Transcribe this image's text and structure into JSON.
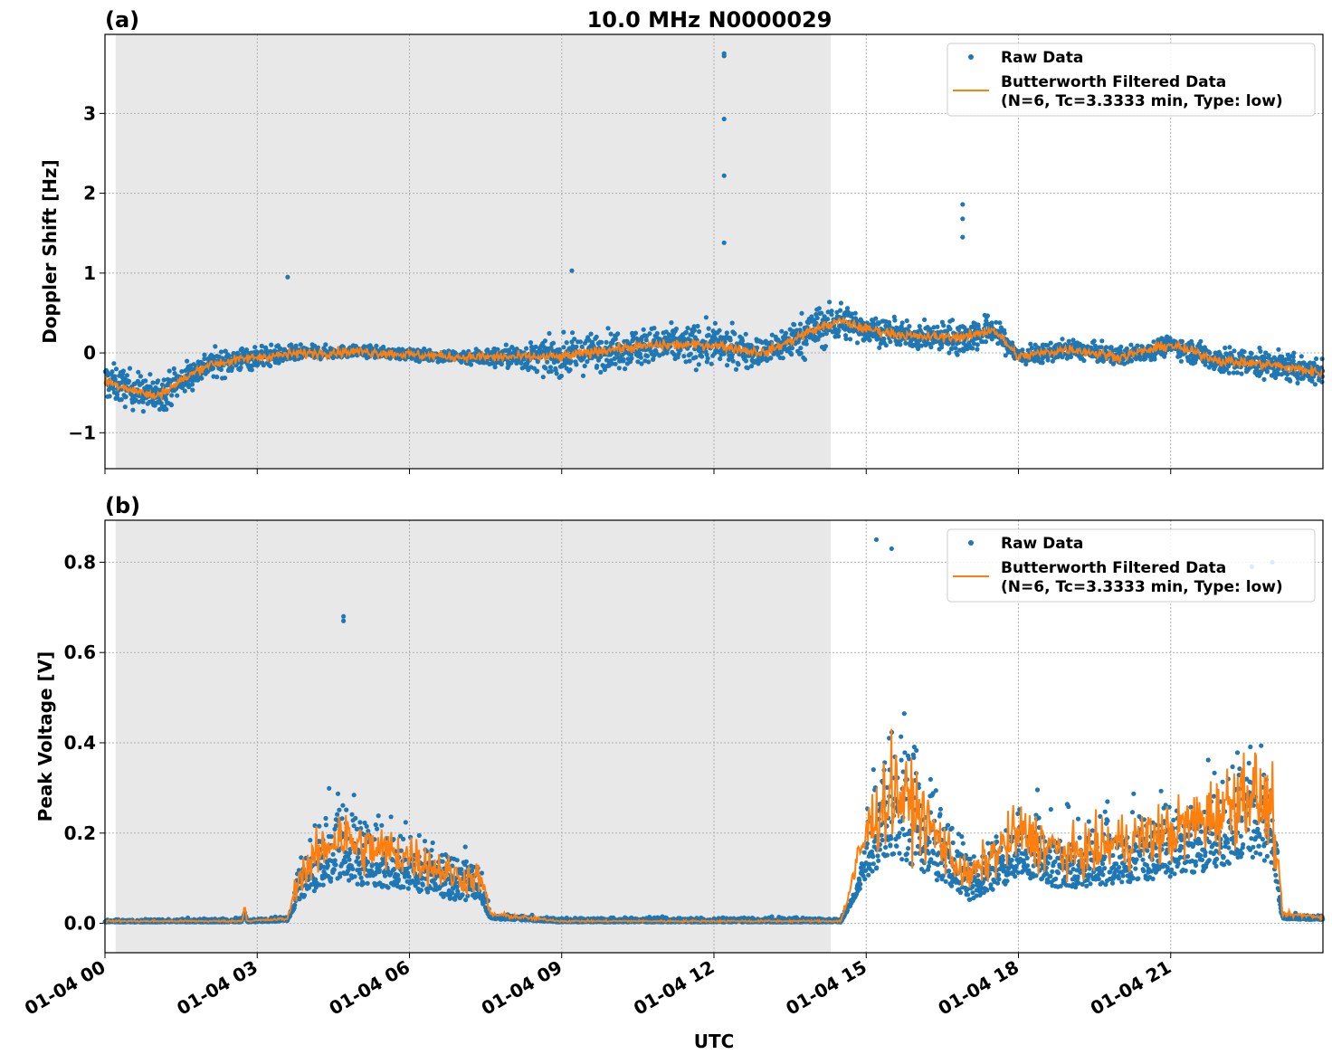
{
  "chart_data": [
    {
      "type": "scatter",
      "panel_label": "(a)",
      "title": "10.0 MHz N0000029",
      "xlabel": "",
      "ylabel": "Doppler Shift [Hz]",
      "xlim_hours": [
        0,
        24
      ],
      "ylim": [
        -1.45,
        3.99
      ],
      "yticks": [
        -1,
        0,
        1,
        2,
        3
      ],
      "ytick_labels": [
        "−1",
        "0",
        "1",
        "2",
        "3"
      ],
      "grid": true,
      "legend_position": "top-right",
      "night_shading_hours": [
        0.21,
        14.3
      ],
      "legend": {
        "raw": "Raw Data",
        "filtered_line1": "Butterworth Filtered Data",
        "filtered_line2": "(N=6, Tc=3.3333 min, Type: low)"
      },
      "filtered": {
        "t": [
          0,
          1,
          2,
          3,
          4,
          5,
          6,
          7,
          8,
          9,
          10,
          11,
          12,
          13,
          14,
          14.5,
          15,
          16,
          17,
          17.5,
          18,
          19,
          20,
          21,
          22,
          23,
          24
        ],
        "v": [
          -0.35,
          -0.55,
          -0.15,
          -0.05,
          0.0,
          0.02,
          -0.02,
          -0.05,
          -0.05,
          -0.05,
          0.05,
          0.1,
          0.1,
          0.0,
          0.3,
          0.4,
          0.3,
          0.2,
          0.2,
          0.3,
          -0.05,
          0.05,
          -0.05,
          0.1,
          -0.1,
          -0.15,
          -0.25
        ]
      },
      "raw_spread": {
        "t": [
          0,
          1,
          2,
          3,
          4,
          5,
          6,
          7,
          8,
          9,
          10,
          11,
          12,
          13,
          14,
          15,
          16,
          17,
          18,
          19,
          20,
          21,
          22,
          23,
          24
        ],
        "v": [
          0.4,
          0.4,
          0.3,
          0.25,
          0.15,
          0.12,
          0.12,
          0.15,
          0.25,
          0.4,
          0.4,
          0.4,
          0.45,
          0.3,
          0.5,
          0.3,
          0.25,
          0.4,
          0.2,
          0.2,
          0.2,
          0.2,
          0.3,
          0.3,
          0.3
        ]
      },
      "raw_outliers": [
        [
          12.2,
          3.75
        ],
        [
          12.2,
          3.72
        ],
        [
          12.2,
          2.93
        ],
        [
          12.2,
          2.22
        ],
        [
          12.2,
          1.38
        ],
        [
          16.9,
          1.86
        ],
        [
          16.9,
          1.68
        ],
        [
          16.9,
          1.45
        ],
        [
          3.6,
          0.95
        ],
        [
          9.2,
          1.03
        ]
      ]
    },
    {
      "type": "scatter",
      "panel_label": "(b)",
      "title": "",
      "xlabel": "UTC",
      "ylabel": "Peak Voltage [V]",
      "xlim_hours": [
        0,
        24
      ],
      "ylim": [
        -0.065,
        0.893
      ],
      "yticks": [
        0.0,
        0.2,
        0.4,
        0.6,
        0.8
      ],
      "ytick_labels": [
        "0.0",
        "0.2",
        "0.4",
        "0.6",
        "0.8"
      ],
      "xticks_hours": [
        0,
        3,
        6,
        9,
        12,
        15,
        18,
        21
      ],
      "xtick_labels": [
        "01-04 00",
        "01-04 03",
        "01-04 06",
        "01-04 09",
        "01-04 12",
        "01-04 15",
        "01-04 18",
        "01-04 21"
      ],
      "grid": true,
      "legend_position": "top-right",
      "night_shading_hours": [
        0.21,
        14.3
      ],
      "legend": {
        "raw": "Raw Data",
        "filtered_line1": "Butterworth Filtered Data",
        "filtered_line2": "(N=6, Tc=3.3333 min, Type: low)"
      },
      "filtered": {
        "t": [
          0,
          2.7,
          2.75,
          2.8,
          3.6,
          3.8,
          4.2,
          4.6,
          5,
          6,
          7,
          7.4,
          7.6,
          9,
          14.5,
          15,
          15.5,
          16,
          17,
          18,
          19,
          20,
          21,
          22,
          22.5,
          23,
          23.2,
          24
        ],
        "v": [
          0.005,
          0.005,
          0.04,
          0.005,
          0.01,
          0.1,
          0.15,
          0.2,
          0.17,
          0.15,
          0.1,
          0.1,
          0.02,
          0.005,
          0.005,
          0.2,
          0.3,
          0.25,
          0.1,
          0.2,
          0.15,
          0.18,
          0.2,
          0.25,
          0.3,
          0.25,
          0.02,
          0.015
        ]
      },
      "raw_spread": {
        "t": [
          0,
          3.7,
          3.9,
          4.6,
          6,
          7.4,
          7.6,
          14.8,
          15.1,
          15.5,
          16.5,
          17.2,
          18,
          20,
          22,
          23,
          23.2,
          24
        ],
        "v": [
          0.005,
          0.01,
          0.12,
          0.2,
          0.12,
          0.1,
          0.01,
          0.01,
          0.2,
          0.3,
          0.2,
          0.1,
          0.15,
          0.15,
          0.2,
          0.25,
          0.01,
          0.01
        ]
      },
      "raw_outliers": [
        [
          4.7,
          0.68
        ],
        [
          4.7,
          0.67
        ],
        [
          15.2,
          0.85
        ],
        [
          15.5,
          0.83
        ],
        [
          22.6,
          0.79
        ],
        [
          23.0,
          0.8
        ]
      ]
    }
  ],
  "colors": {
    "raw": "#1f77b4",
    "filtered": "#ff7f0e",
    "shade": "#e8e8e8",
    "grid": "#b0b0b0"
  }
}
